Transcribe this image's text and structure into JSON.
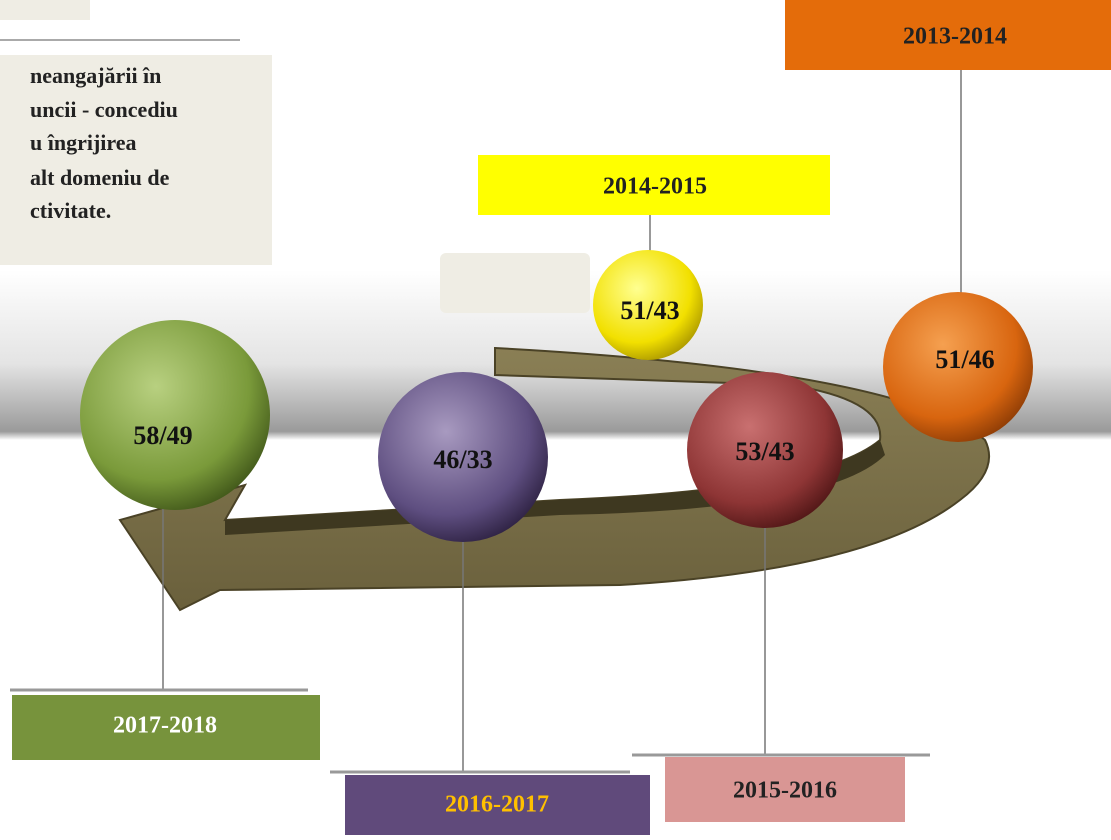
{
  "text_block": {
    "lines": [
      "neangajării în",
      "uncii - concediu",
      "u îngrijirea",
      "alt domeniu de",
      "ctivitate."
    ]
  },
  "nodes": [
    {
      "period": "2013-2014",
      "value": "51/46"
    },
    {
      "period": "2014-2015",
      "value": "51/43"
    },
    {
      "period": "2015-2016",
      "value": "53/43"
    },
    {
      "period": "2016-2017",
      "value": "46/33"
    },
    {
      "period": "2017-2018",
      "value": "58/49"
    }
  ]
}
